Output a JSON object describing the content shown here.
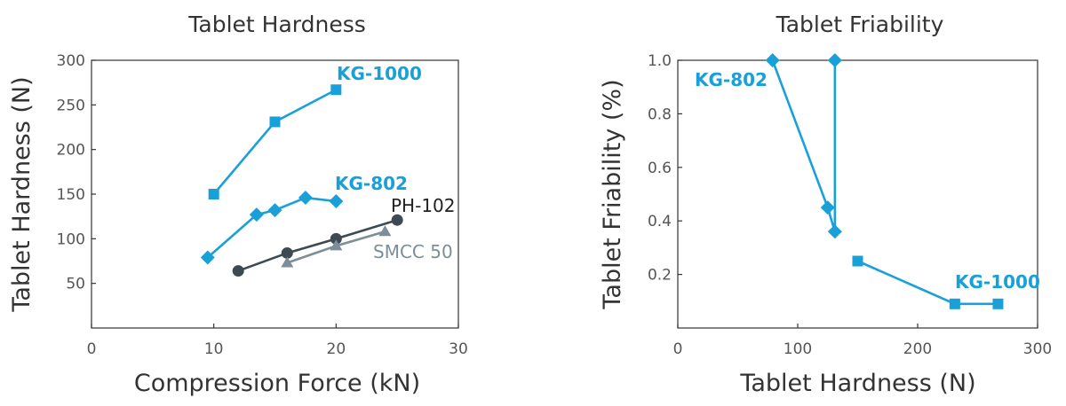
{
  "chart_data": [
    {
      "type": "line",
      "title": "Tablet Hardness",
      "xlabel": "Compression Force (kN)",
      "ylabel": "Tablet Hardness (N)",
      "xlim": [
        0,
        30
      ],
      "ylim": [
        0,
        300
      ],
      "xticks": [
        "0",
        "10",
        "20",
        "30"
      ],
      "yticks": [
        "50",
        "100",
        "150",
        "200",
        "250",
        "300"
      ],
      "grid": false,
      "series": [
        {
          "name": "KG-1000",
          "marker": "square",
          "color": "#1aa0d8",
          "label_color": "#1aa0d8",
          "x": [
            10,
            15,
            20
          ],
          "y": [
            150,
            231,
            267
          ]
        },
        {
          "name": "KG-802",
          "marker": "diamond",
          "color": "#1aa0d8",
          "label_color": "#1aa0d8",
          "x": [
            9.5,
            13.5,
            15,
            17.5,
            20
          ],
          "y": [
            79,
            127,
            132,
            146,
            142
          ]
        },
        {
          "name": "PH-102",
          "marker": "circle",
          "color": "#3d4a52",
          "label_color": "#222222",
          "x": [
            12,
            16,
            20,
            25
          ],
          "y": [
            64,
            84,
            100,
            121
          ]
        },
        {
          "name": "SMCC 50",
          "marker": "triangle",
          "color": "#7c8e99",
          "label_color": "#7c8e99",
          "x": [
            16,
            20,
            24
          ],
          "y": [
            73,
            92,
            108
          ]
        }
      ]
    },
    {
      "type": "line",
      "title": "Tablet Friability",
      "xlabel": "Tablet Hardness (N)",
      "ylabel": "Tablet Friability (%)",
      "xlim": [
        0,
        300
      ],
      "ylim": [
        0,
        1.0
      ],
      "xticks": [
        "0",
        "100",
        "200",
        "300"
      ],
      "yticks": [
        "0.2",
        "0.4",
        "0.6",
        "0.8",
        "1.0"
      ],
      "grid": false,
      "series": [
        {
          "name": "KG-802",
          "marker": "diamond",
          "color": "#1aa0d8",
          "label_color": "#1aa0d8",
          "x": [
            79,
            125,
            131,
            131
          ],
          "y": [
            1.0,
            0.45,
            0.36,
            1.0
          ]
        },
        {
          "name": "KG-1000",
          "marker": "square",
          "color": "#1aa0d8",
          "label_color": "#1aa0d8",
          "x": [
            150,
            231,
            267
          ],
          "y": [
            0.25,
            0.09,
            0.09
          ]
        }
      ]
    }
  ]
}
